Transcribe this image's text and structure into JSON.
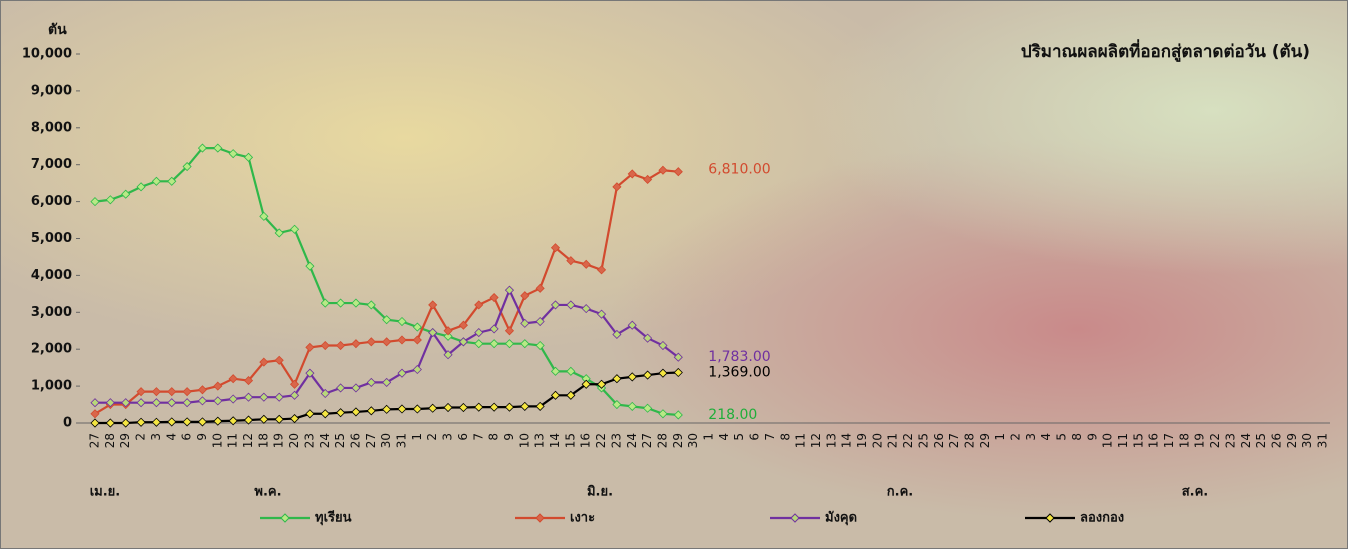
{
  "chart_data": {
    "type": "line",
    "title": "ปริมาณผลผลิตที่ออกสู่ตลาดต่อวัน  (ตัน)",
    "y_label": "ตัน",
    "categories": [
      "27",
      "28",
      "29",
      "2",
      "3",
      "4",
      "6",
      "9",
      "10",
      "11",
      "12",
      "18",
      "19",
      "20",
      "23",
      "24",
      "25",
      "26",
      "27",
      "30",
      "31",
      "1",
      "2",
      "3",
      "6",
      "7",
      "8",
      "9",
      "10",
      "13",
      "14",
      "15",
      "16",
      "22",
      "23",
      "24",
      "27",
      "28",
      "29",
      "30",
      "1",
      "4",
      "5",
      "6",
      "7",
      "8",
      "11",
      "12",
      "13",
      "14",
      "19",
      "20",
      "21",
      "22",
      "25",
      "26",
      "27",
      "28",
      "29",
      "1",
      "2",
      "3",
      "4",
      "5",
      "8",
      "9",
      "10",
      "11",
      "15",
      "16",
      "17",
      "18",
      "19",
      "22",
      "23",
      "24",
      "25",
      "26",
      "29",
      "30",
      "31"
    ],
    "x_group_labels": [
      "เม.ย.",
      "พ.ค.",
      "มิ.ย.",
      "ก.ค.",
      "ส.ค."
    ],
    "ylim": [
      0,
      10000
    ],
    "yticks": [
      0,
      {
        "value": 1000,
        "label": "1,000"
      },
      {
        "value": 2000,
        "label": "2,000"
      },
      {
        "value": 3000,
        "label": "3,000"
      },
      {
        "value": 4000,
        "label": "4,000"
      },
      {
        "value": 5000,
        "label": "5,000"
      },
      {
        "value": 6000,
        "label": "6,000"
      },
      {
        "value": 7000,
        "label": "7,000"
      },
      {
        "value": 8000,
        "label": "8,000"
      },
      {
        "value": 9000,
        "label": "9,000"
      },
      {
        "value": 10000,
        "label": "10,000"
      }
    ],
    "grid": false,
    "legend": "bottom",
    "series": [
      {
        "name": "ทุเรียน",
        "color": "#2fb84a",
        "marker_color": "#b8e986",
        "values": [
          6000,
          6050,
          6200,
          6400,
          6550,
          6550,
          6950,
          7450,
          7450,
          7300,
          7200,
          5600,
          5150,
          5250,
          4250,
          3250,
          3250,
          3250,
          3200,
          2800,
          2750,
          2600,
          2450,
          2350,
          2200,
          2150,
          2150,
          2150,
          2150,
          2100,
          1400,
          1400,
          1200,
          950,
          500,
          450,
          400,
          250,
          218,
          null,
          null,
          null,
          null,
          null,
          null,
          null,
          null,
          null,
          null,
          null,
          null,
          null,
          null,
          null,
          null,
          null,
          null,
          null,
          null,
          null,
          null,
          null,
          null,
          null,
          null,
          null,
          null,
          null,
          null,
          null,
          null,
          null,
          null,
          null,
          null,
          null,
          null,
          null,
          null,
          null,
          null
        ],
        "value_labels": [
          null,
          null,
          null,
          null,
          null,
          null,
          null,
          null,
          null,
          null,
          null,
          null,
          null,
          null,
          null,
          null,
          null,
          null,
          null,
          null,
          null,
          null,
          null,
          null,
          null,
          null,
          null,
          null,
          null,
          null,
          null,
          null,
          null,
          null,
          null,
          null,
          null,
          null,
          "218.00",
          null,
          null,
          null,
          null,
          null,
          null,
          null,
          null,
          null,
          null,
          null,
          null,
          null,
          null,
          null,
          null,
          null,
          null,
          null,
          null,
          null,
          null,
          null,
          null,
          null,
          null,
          null,
          null,
          null,
          null,
          null,
          null,
          null,
          null,
          null,
          null,
          null,
          null,
          null,
          null,
          null,
          null
        ]
      },
      {
        "name": "เงาะ",
        "color": "#d24a2e",
        "marker_color": "#d9664a",
        "values": [
          250,
          500,
          500,
          850,
          850,
          850,
          850,
          900,
          1000,
          1200,
          1150,
          1650,
          1700,
          1050,
          2050,
          2100,
          2100,
          2150,
          2200,
          2200,
          2250,
          2250,
          3200,
          2500,
          2650,
          3200,
          3400,
          2500,
          3450,
          3650,
          4750,
          4400,
          4300,
          4150,
          6400,
          6750,
          6600,
          6850,
          6810,
          null,
          null,
          null,
          null,
          null,
          null,
          null,
          null,
          null,
          null,
          null,
          null,
          null,
          null,
          null,
          null,
          null,
          null,
          null,
          null,
          null,
          null,
          null,
          null,
          null,
          null,
          null,
          null,
          null,
          null,
          null,
          null,
          null,
          null,
          null,
          null,
          null,
          null,
          null,
          null,
          null,
          null
        ],
        "value_labels": [
          null,
          null,
          null,
          null,
          null,
          null,
          null,
          null,
          null,
          null,
          null,
          null,
          null,
          null,
          null,
          null,
          null,
          null,
          null,
          null,
          null,
          null,
          null,
          null,
          null,
          null,
          null,
          null,
          null,
          null,
          null,
          null,
          null,
          null,
          null,
          null,
          null,
          null,
          "6,810.00",
          null,
          null,
          null,
          null,
          null,
          null,
          null,
          null,
          null,
          null,
          null,
          null,
          null,
          null,
          null,
          null,
          null,
          null,
          null,
          null,
          null,
          null,
          null,
          null,
          null,
          null,
          null,
          null,
          null,
          null,
          null,
          null,
          null,
          null,
          null,
          null,
          null,
          null,
          null,
          null,
          null,
          null
        ]
      },
      {
        "name": "มังคุด",
        "color": "#7030a0",
        "marker_color": "#b8d87a",
        "values": [
          550,
          550,
          550,
          550,
          550,
          550,
          550,
          600,
          600,
          650,
          700,
          700,
          700,
          750,
          1350,
          800,
          950,
          950,
          1100,
          1100,
          1350,
          1450,
          2450,
          1850,
          2200,
          2450,
          2550,
          3600,
          2700,
          2750,
          3200,
          3200,
          3100,
          2950,
          2400,
          2650,
          2300,
          2100,
          1783,
          null,
          null,
          null,
          null,
          null,
          null,
          null,
          null,
          null,
          null,
          null,
          null,
          null,
          null,
          null,
          null,
          null,
          null,
          null,
          null,
          null,
          null,
          null,
          null,
          null,
          null,
          null,
          null,
          null,
          null,
          null,
          null,
          null,
          null,
          null,
          null,
          null,
          null,
          null,
          null,
          null,
          null
        ],
        "value_labels": [
          null,
          null,
          null,
          null,
          null,
          null,
          null,
          null,
          null,
          null,
          null,
          null,
          null,
          null,
          null,
          null,
          null,
          null,
          null,
          null,
          null,
          null,
          null,
          null,
          null,
          null,
          null,
          null,
          null,
          null,
          null,
          null,
          null,
          null,
          null,
          null,
          null,
          null,
          "1,783.00",
          null,
          null,
          null,
          null,
          null,
          null,
          null,
          null,
          null,
          null,
          null,
          null,
          null,
          null,
          null,
          null,
          null,
          null,
          null,
          null,
          null,
          null,
          null,
          null,
          null,
          null,
          null,
          null,
          null,
          null,
          null,
          null,
          null,
          null,
          null,
          null,
          null,
          null,
          null,
          null,
          null,
          null
        ]
      },
      {
        "name": "ลองกอง",
        "color": "#000000",
        "marker_color": "#f5e642",
        "values": [
          0,
          0,
          0,
          20,
          20,
          30,
          30,
          30,
          50,
          60,
          80,
          100,
          100,
          120,
          250,
          250,
          280,
          300,
          330,
          370,
          380,
          380,
          400,
          420,
          420,
          430,
          430,
          430,
          450,
          450,
          750,
          750,
          1050,
          1050,
          1200,
          1250,
          1300,
          1350,
          1369,
          null,
          null,
          null,
          null,
          null,
          null,
          null,
          null,
          null,
          null,
          null,
          null,
          null,
          null,
          null,
          null,
          null,
          null,
          null,
          null,
          null,
          null,
          null,
          null,
          null,
          null,
          null,
          null,
          null,
          null,
          null,
          null,
          null,
          null,
          null,
          null,
          null,
          null,
          null,
          null,
          null,
          null
        ],
        "value_labels": [
          null,
          null,
          null,
          null,
          null,
          null,
          null,
          null,
          null,
          null,
          null,
          null,
          null,
          null,
          null,
          null,
          null,
          null,
          null,
          null,
          null,
          null,
          null,
          null,
          null,
          null,
          null,
          null,
          null,
          null,
          null,
          null,
          null,
          null,
          null,
          null,
          null,
          null,
          "1,369.00",
          null,
          null,
          null,
          null,
          null,
          null,
          null,
          null,
          null,
          null,
          null,
          null,
          null,
          null,
          null,
          null,
          null,
          null,
          null,
          null,
          null,
          null,
          null,
          null,
          null,
          null,
          null,
          null,
          null,
          null,
          null,
          null,
          null,
          null,
          null,
          null,
          null,
          null,
          null,
          null,
          null,
          null
        ]
      }
    ]
  }
}
